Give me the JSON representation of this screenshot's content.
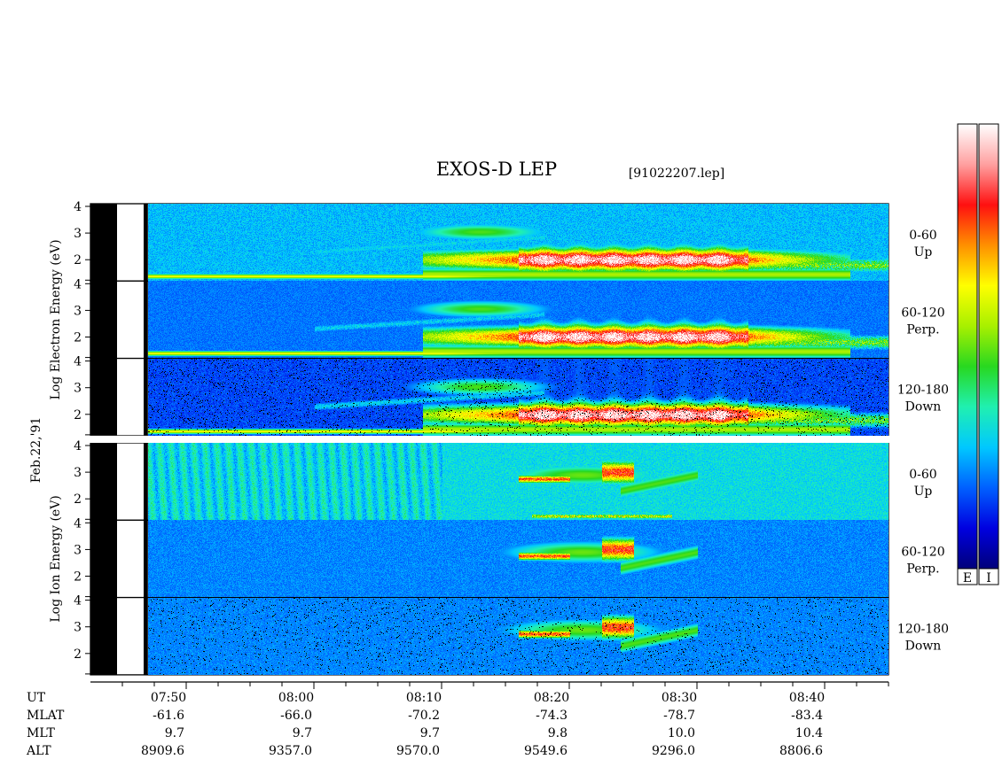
{
  "chart_data": {
    "type": "heatmap",
    "title": "EXOS-D LEP",
    "file_label": "[91022207.lep]",
    "date_label": "Feb.22,'91",
    "groups": [
      {
        "species": "Electron",
        "ylabel": [
          "Log",
          "Electron",
          "Energy",
          "(eV)"
        ],
        "panels": [
          {
            "pitch": "0-60",
            "dir": "Up"
          },
          {
            "pitch": "60-120",
            "dir": "Perp."
          },
          {
            "pitch": "120-180",
            "dir": "Down"
          }
        ]
      },
      {
        "species": "Ion",
        "ylabel": [
          "Log",
          "Ion",
          "Energy",
          "(eV)"
        ],
        "panels": [
          {
            "pitch": "0-60",
            "dir": "Up"
          },
          {
            "pitch": "60-120",
            "dir": "Perp."
          },
          {
            "pitch": "120-180",
            "dir": "Down"
          }
        ]
      }
    ],
    "y_range": [
      1.2,
      4.1
    ],
    "y_ticks": [
      "2",
      "3",
      "4"
    ],
    "x_range_min": [
      -7.5,
      55
    ],
    "x_ticks": [
      "07:50",
      "08:00",
      "08:10",
      "08:20",
      "08:30",
      "08:40"
    ],
    "x_ticks_min": [
      0,
      10,
      20,
      30,
      40,
      50
    ],
    "ephemeris": {
      "labels": [
        "UT",
        "MLAT",
        "MLT",
        "ALT"
      ],
      "rows": [
        [
          "-61.6",
          "-66.0",
          "-70.2",
          "-74.3",
          "-78.7",
          "-83.4"
        ],
        [
          "9.7",
          "9.7",
          "9.7",
          "9.8",
          "10.0",
          "10.4"
        ],
        [
          "8909.6",
          "9357.0",
          "9570.0",
          "9549.6",
          "9296.0",
          "8806.6"
        ]
      ]
    },
    "colorbar_labels": [
      "E",
      "I"
    ],
    "colormap": [
      "#00007a",
      "#0000e0",
      "#0060ff",
      "#00c8ff",
      "#20f0b0",
      "#28d820",
      "#a8f000",
      "#ffff00",
      "#ff9000",
      "#ff1010",
      "#ffa0a0",
      "#ffffff"
    ],
    "data_gap_min": [
      -7.5,
      -3.0
    ]
  }
}
